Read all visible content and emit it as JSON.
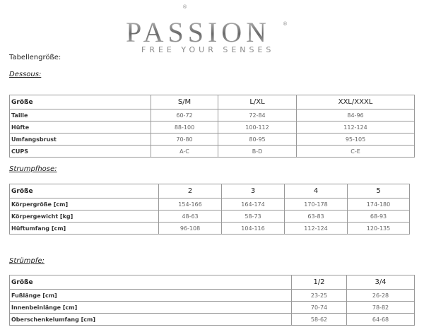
{
  "logo": {
    "brand": "PASSION",
    "tagline": "FREE YOUR SENSES",
    "registered": "®"
  },
  "heading": "Tabellengröße:",
  "sections": [
    {
      "title": "Dessous:",
      "header": [
        "Größe",
        "S/M",
        "L/XL",
        "XXL/XXXL"
      ],
      "rows": [
        [
          "Taille",
          "60-72",
          "72-84",
          "84-96"
        ],
        [
          "Hüfte",
          "88-100",
          "100-112",
          "112-124"
        ],
        [
          "Umfangsbrust",
          "70-80",
          "80-95",
          "95-105"
        ],
        [
          "CUPS",
          "A-C",
          "B-D",
          "C-E"
        ]
      ]
    },
    {
      "title": "Strumpfhose:",
      "header": [
        "Größe",
        "2",
        "3",
        "4",
        "5"
      ],
      "rows": [
        [
          "Körpergröße [cm]",
          "154-166",
          "164-174",
          "170-178",
          "174-180"
        ],
        [
          "Körpergewicht [kg]",
          "48-63",
          "58-73",
          "63-83",
          "68-93"
        ],
        [
          "Hüftumfang [cm]",
          "96-108",
          "104-116",
          "112-124",
          "120-135"
        ]
      ]
    },
    {
      "title": "Strümpfe:",
      "header": [
        "Größe",
        "1/2",
        "3/4"
      ],
      "rows": [
        [
          "Fußlänge [cm]",
          "23-25",
          "26-28"
        ],
        [
          "Innenbeinlänge [cm]",
          "70-74",
          "78-82"
        ],
        [
          "Oberschenkelumfang [cm]",
          "58-62",
          "64-68"
        ]
      ]
    }
  ]
}
